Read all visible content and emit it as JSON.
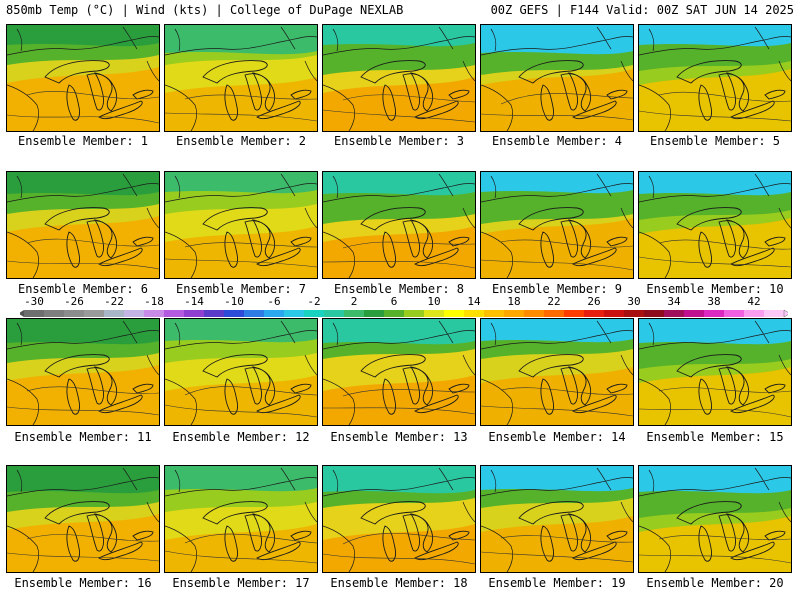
{
  "header": {
    "left": "850mb Temp (°C) | Wind (kts) | College of DuPage NEXLAB",
    "right": "00Z GEFS | F144 Valid: 00Z SAT JUN 14 2025"
  },
  "panels": [
    {
      "label": "Ensemble Member: 1"
    },
    {
      "label": "Ensemble Member: 2"
    },
    {
      "label": "Ensemble Member: 3"
    },
    {
      "label": "Ensemble Member: 4"
    },
    {
      "label": "Ensemble Member: 5"
    },
    {
      "label": "Ensemble Member: 6"
    },
    {
      "label": "Ensemble Member: 7"
    },
    {
      "label": "Ensemble Member: 8"
    },
    {
      "label": "Ensemble Member: 9"
    },
    {
      "label": "Ensemble Member: 10"
    },
    {
      "label": "Ensemble Member: 11"
    },
    {
      "label": "Ensemble Member: 12"
    },
    {
      "label": "Ensemble Member: 13"
    },
    {
      "label": "Ensemble Member: 14"
    },
    {
      "label": "Ensemble Member: 15"
    },
    {
      "label": "Ensemble Member: 16"
    },
    {
      "label": "Ensemble Member: 17"
    },
    {
      "label": "Ensemble Member: 18"
    },
    {
      "label": "Ensemble Member: 19"
    },
    {
      "label": "Ensemble Member: 20"
    }
  ],
  "colorbar": {
    "ticks": [
      "-30",
      "-26",
      "-22",
      "-18",
      "-14",
      "-10",
      "-6",
      "-2",
      "2",
      "6",
      "10",
      "14",
      "18",
      "22",
      "26",
      "30",
      "34",
      "38",
      "42"
    ],
    "colors": [
      "#6e6e6e",
      "#7e7e7e",
      "#8c8c8c",
      "#9a9a9a",
      "#a9b6c8",
      "#c4b4e6",
      "#c88ce8",
      "#b45ae0",
      "#9040d0",
      "#5a3cc8",
      "#2e4ad8",
      "#2e7be6",
      "#29a8f0",
      "#2cc8e8",
      "#19d2c0",
      "#2ac8a0",
      "#3cbb6a",
      "#2a9e3c",
      "#55b22a",
      "#98cc1e",
      "#dce61a",
      "#ffff00",
      "#ffe000",
      "#ffc000",
      "#ffa800",
      "#ff8c00",
      "#ff6a00",
      "#ff3c00",
      "#e81e10",
      "#cc1010",
      "#a81010",
      "#8c0c1c",
      "#a0105a",
      "#c01090",
      "#dc28c0",
      "#f060e0",
      "#fa9cf0",
      "#fcc8f8"
    ]
  }
}
